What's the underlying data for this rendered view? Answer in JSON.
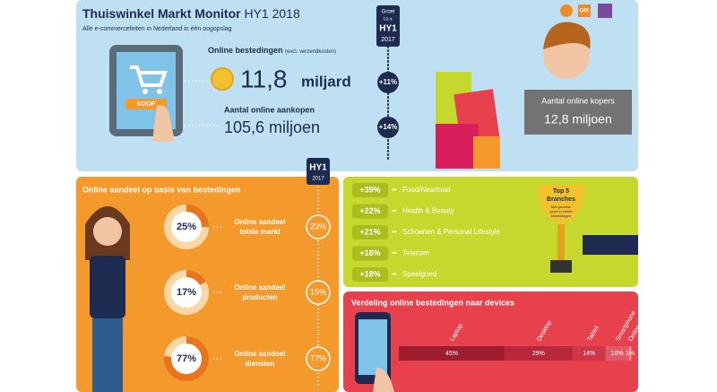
{
  "header": {
    "title": "Thuiswinkel Markt Monitor",
    "title_suffix": "HY1 2018",
    "subtitle": "Alle e-commercefeiten in Nederland in één oogopslag",
    "logo": "GfK"
  },
  "growth_badge": [
    "Groei",
    "t.o.v.",
    "HY1",
    "2017"
  ],
  "spend": {
    "label": "Online bestedingen",
    "note": "(excl. verzendkosten)",
    "value": "11,8",
    "unit": "miljard",
    "growth": "+11%"
  },
  "purchases": {
    "label": "Aantal online aankopen",
    "value": "105,6 miljoen",
    "growth": "+14%"
  },
  "buyers": {
    "label": "Aantal online kopers",
    "value": "12,8 miljoen"
  },
  "tablet_button": "KOOP",
  "share": {
    "title": "Online aandeel op basis van bestedingen",
    "badge": [
      "HY1",
      "2017"
    ],
    "rows": [
      {
        "value": 25,
        "label": "25%",
        "name": [
          "Online aandeel",
          "totale markt"
        ],
        "previous": "23%"
      },
      {
        "value": 17,
        "label": "17%",
        "name": [
          "Online aandeel",
          "producten"
        ],
        "previous": "15%"
      },
      {
        "value": 77,
        "label": "77%",
        "name": [
          "Online aandeel",
          "diensten"
        ],
        "previous": "77%"
      }
    ]
  },
  "branches": {
    "badge": [
      "Top 5",
      "Branches"
    ],
    "badge_note": [
      "Met grootste",
      "groei in online",
      "bestedingen"
    ],
    "rows": [
      {
        "growth": "+39%",
        "name": "Food/Nearfood"
      },
      {
        "growth": "+22%",
        "name": "Health & Beauty"
      },
      {
        "growth": "+21%",
        "name": "Schoenen & Personal Lifestyle"
      },
      {
        "growth": "+18%",
        "name": "Telecom"
      },
      {
        "growth": "+18%",
        "name": "Speelgoed"
      }
    ]
  },
  "devices": {
    "title": "Verdeling online bestedingen naar devices",
    "segments": [
      {
        "name": "Laptop",
        "value": 45,
        "label": "45%",
        "color": "#9e1c30"
      },
      {
        "name": "Desktop",
        "value": 29,
        "label": "29%",
        "color": "#b8283c"
      },
      {
        "name": "Tablet",
        "value": 14,
        "label": "14%",
        "color": "#cf3648"
      },
      {
        "name": "Smartphone",
        "value": 10,
        "label": "10%",
        "color": "#e05a68"
      },
      {
        "name": "Online in winkel",
        "value": 1,
        "label": "1%",
        "color": "#f08c96"
      }
    ]
  }
}
